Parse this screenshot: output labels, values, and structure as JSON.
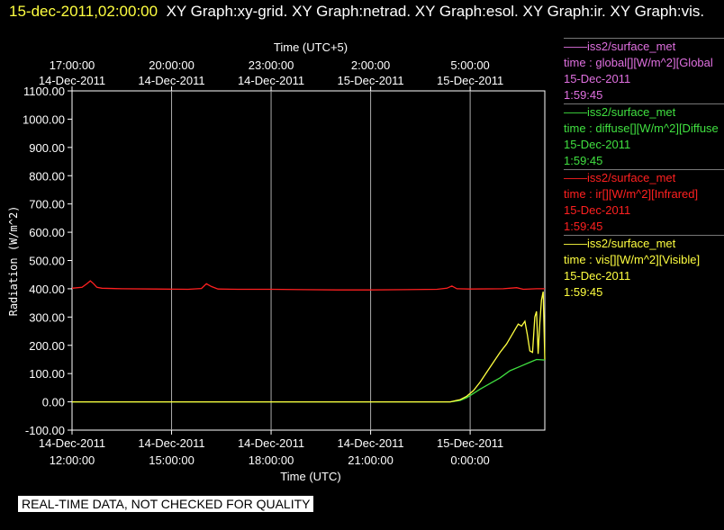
{
  "header": {
    "timestamp": "15-dec-2011,02:00:00",
    "graphs_text": "XY Graph:xy-grid.  XY Graph:netrad.  XY Graph:esol.  XY Graph:ir.  XY Graph:vis."
  },
  "notice": "REAL-TIME DATA, NOT CHECKED FOR QUALITY",
  "legend": [
    {
      "source": "iss2/surface_met",
      "var": "time : global[][W/m^2][Global",
      "date": "15-Dec-2011",
      "time": "1:59:45",
      "color": "#e070e0"
    },
    {
      "source": "iss2/surface_met",
      "var": "time : diffuse[][W/m^2][Diffuse",
      "date": "15-Dec-2011",
      "time": "1:59:45",
      "color": "#40e040"
    },
    {
      "source": "iss2/surface_met",
      "var": "time : ir[][W/m^2][Infrared]",
      "date": "15-Dec-2011",
      "time": "1:59:45",
      "color": "#ff2020"
    },
    {
      "source": "iss2/surface_met",
      "var": "time : vis[][W/m^2][Visible]",
      "date": "15-Dec-2011",
      "time": "1:59:45",
      "color": "#ffff40"
    }
  ],
  "chart_data": {
    "type": "line",
    "top_axis_title": "Time (UTC+5)",
    "xlabel": "Time (UTC)",
    "ylabel": "Radiation (W/m^2)",
    "x_unit": "hours from 14-Dec-2011 12:00 UTC",
    "xlim": [
      0,
      14.25
    ],
    "ylim": [
      -100,
      1100
    ],
    "grid": "vertical",
    "yticks": [
      "1100.00",
      "1000.00",
      "900.00",
      "800.00",
      "700.00",
      "600.00",
      "500.00",
      "400.00",
      "300.00",
      "200.00",
      "100.00",
      "0.00",
      "-100.00"
    ],
    "bottom_ticks": [
      {
        "x": 0,
        "date": "14-Dec-2011",
        "time": "12:00:00"
      },
      {
        "x": 3,
        "date": "14-Dec-2011",
        "time": "15:00:00"
      },
      {
        "x": 6,
        "date": "14-Dec-2011",
        "time": "18:00:00"
      },
      {
        "x": 9,
        "date": "14-Dec-2011",
        "time": "21:00:00"
      },
      {
        "x": 12,
        "date": "15-Dec-2011",
        "time": "0:00:00"
      }
    ],
    "top_ticks": [
      {
        "x": 0,
        "time": "17:00:00",
        "date": "14-Dec-2011"
      },
      {
        "x": 3,
        "time": "20:00:00",
        "date": "14-Dec-2011"
      },
      {
        "x": 6,
        "time": "23:00:00",
        "date": "14-Dec-2011"
      },
      {
        "x": 9,
        "time": "2:00:00",
        "date": "15-Dec-2011"
      },
      {
        "x": 12,
        "time": "5:00:00",
        "date": "15-Dec-2011"
      }
    ],
    "series": [
      {
        "name": "ir",
        "color": "#ff2020",
        "x": [
          0,
          0.3,
          0.45,
          0.55,
          0.65,
          0.75,
          0.9,
          1.5,
          2.5,
          3.5,
          3.9,
          4.05,
          4.2,
          4.4,
          5,
          6,
          7,
          8,
          9,
          10,
          11,
          11.3,
          11.45,
          11.6,
          12,
          13,
          13.4,
          13.6,
          14,
          14.25
        ],
        "y": [
          402,
          405,
          418,
          428,
          418,
          405,
          402,
          400,
          399,
          398,
          401,
          418,
          408,
          399,
          398,
          398,
          397,
          396,
          396,
          397,
          398,
          402,
          410,
          400,
          399,
          400,
          404,
          398,
          400,
          400
        ]
      },
      {
        "name": "diffuse",
        "color": "#40e040",
        "x": [
          0,
          11.4,
          11.7,
          11.9,
          12.1,
          12.3,
          12.6,
          12.9,
          13.2,
          13.5,
          13.8,
          14.0,
          14.25
        ],
        "y": [
          0,
          0,
          5,
          15,
          30,
          45,
          65,
          85,
          110,
          125,
          140,
          150,
          148
        ]
      },
      {
        "name": "vis",
        "color": "#ffff40",
        "x": [
          0,
          11.4,
          11.7,
          11.9,
          12.1,
          12.3,
          12.5,
          12.7,
          12.9,
          13.1,
          13.3,
          13.45,
          13.55,
          13.65,
          13.72,
          13.8,
          13.88,
          13.95,
          14.0,
          14.05,
          14.1,
          14.15,
          14.2,
          14.25
        ],
        "y": [
          0,
          0,
          8,
          20,
          40,
          70,
          105,
          140,
          175,
          205,
          245,
          275,
          268,
          285,
          240,
          180,
          175,
          300,
          320,
          170,
          280,
          360,
          390,
          150
        ]
      }
    ]
  }
}
